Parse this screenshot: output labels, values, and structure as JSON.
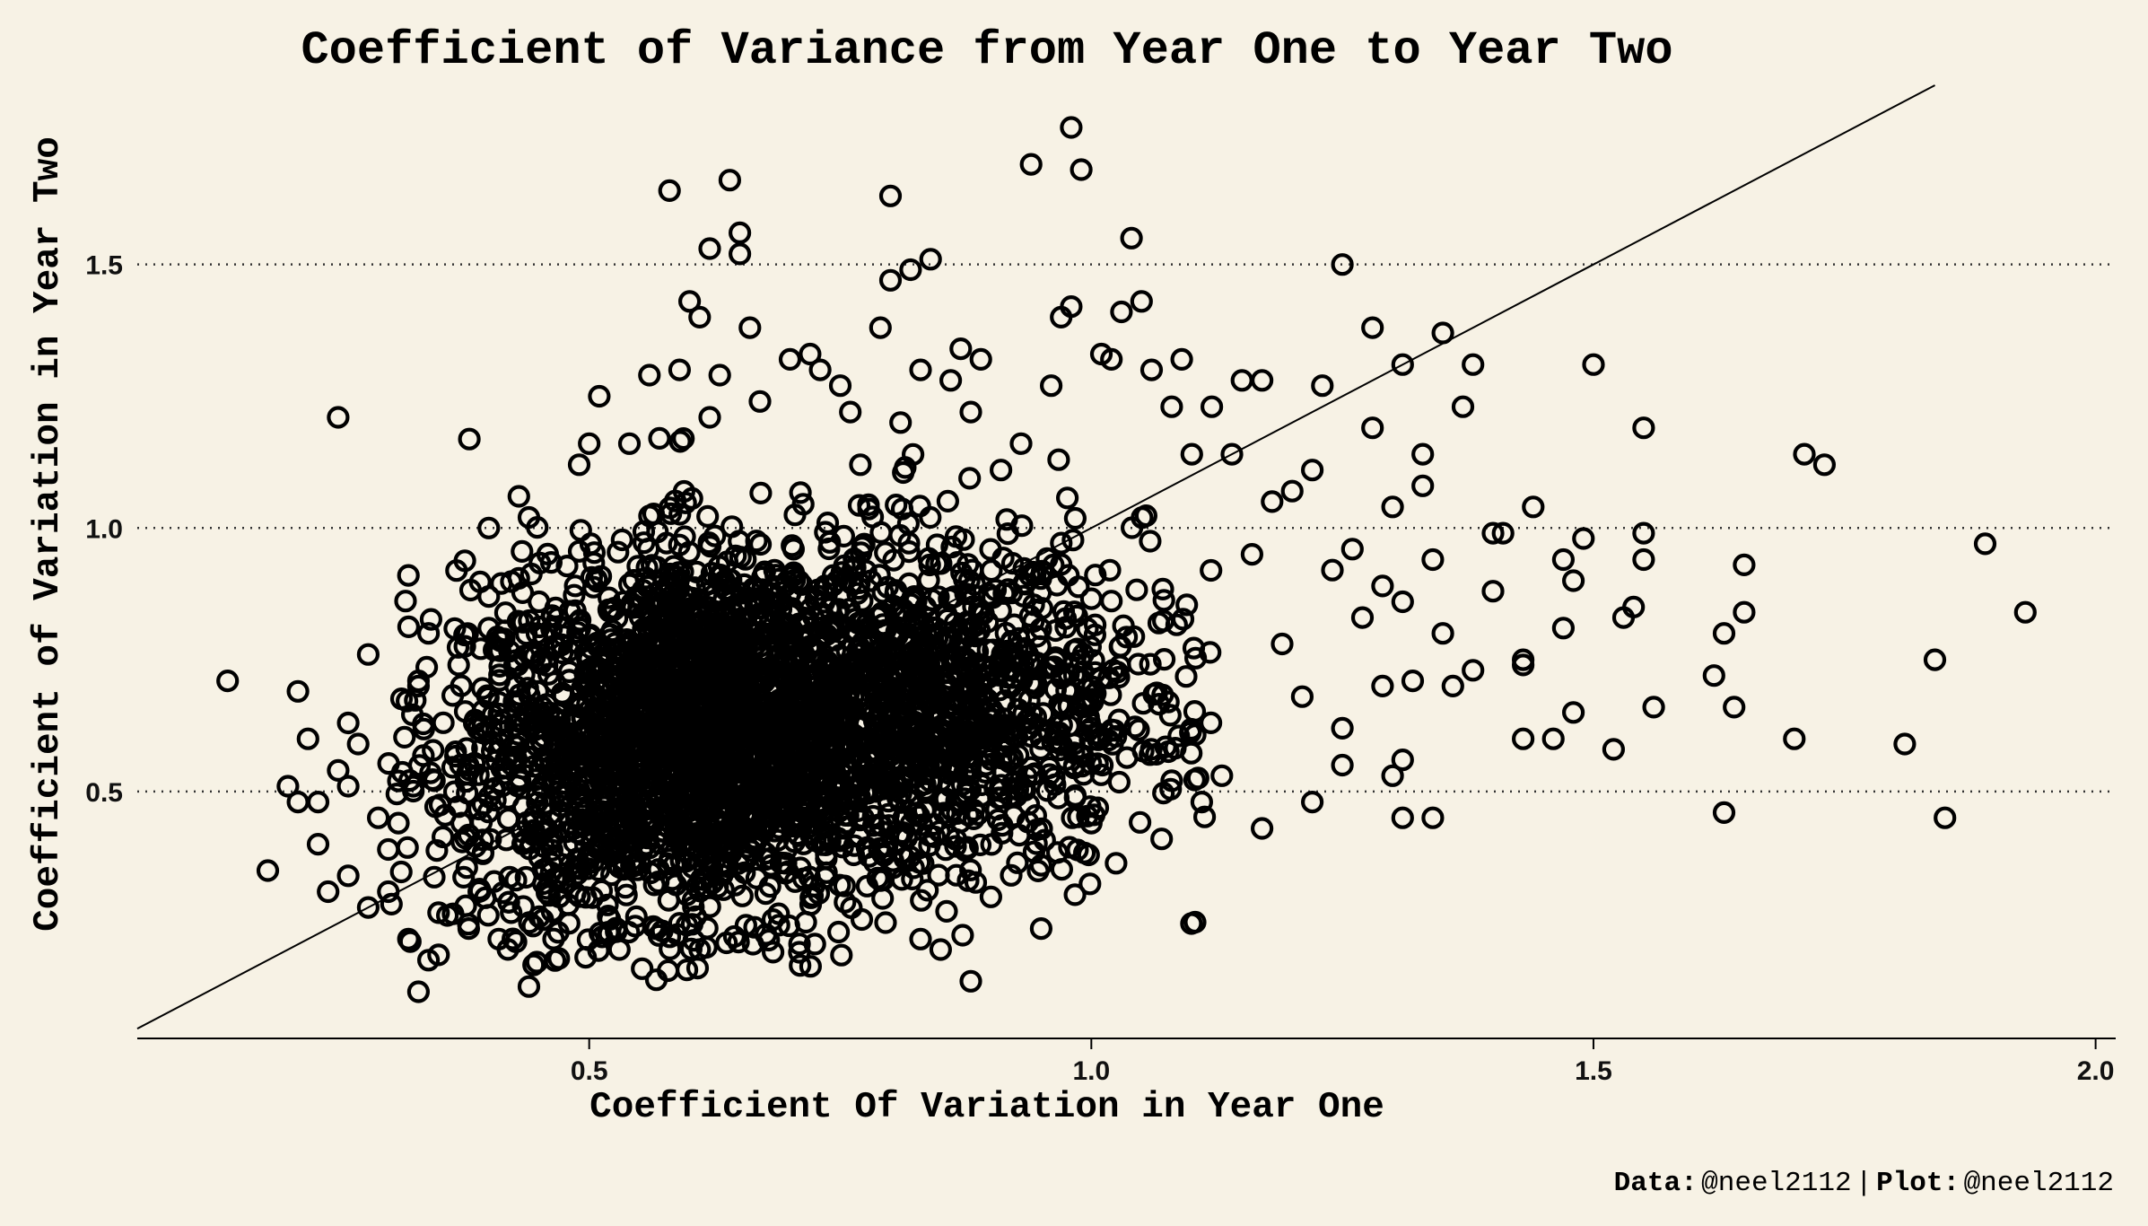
{
  "chart_data": {
    "type": "scatter",
    "title": "Coefficient of Variance from Year One to Year Two",
    "xlabel": "Coefficient Of Variation in Year One",
    "ylabel": "Coefficient of Variation in Year Two",
    "xlim": [
      0.05,
      2.02
    ],
    "ylim": [
      0.04,
      1.84
    ],
    "x_ticks": [
      0.5,
      1.0,
      1.5,
      2.0
    ],
    "x_tick_labels": [
      "0.5",
      "1.0",
      "1.5",
      "2.0"
    ],
    "y_ticks": [
      0.5,
      1.0,
      1.5
    ],
    "y_tick_labels": [
      "0.5",
      "1.0",
      "1.5"
    ],
    "grid": "horizontal dotted",
    "reference_line": "y = x",
    "marker": "open circle",
    "colors": {
      "background": "#f7f2e5",
      "marker": "#000000",
      "text": "#000000"
    },
    "cluster": {
      "count": 3400,
      "center_x": 0.65,
      "center_y": 0.62,
      "spread_x": 0.16,
      "spread_y": 0.17
    },
    "points": [
      [
        0.14,
        0.71
      ],
      [
        0.18,
        0.35
      ],
      [
        0.2,
        0.51
      ],
      [
        0.21,
        0.69
      ],
      [
        0.21,
        0.48
      ],
      [
        0.22,
        0.6
      ],
      [
        0.23,
        0.48
      ],
      [
        0.23,
        0.4
      ],
      [
        0.24,
        0.31
      ],
      [
        0.25,
        0.54
      ],
      [
        0.26,
        0.34
      ],
      [
        0.26,
        0.51
      ],
      [
        0.26,
        0.63
      ],
      [
        0.27,
        0.59
      ],
      [
        0.28,
        0.28
      ],
      [
        0.28,
        0.76
      ],
      [
        0.29,
        0.45
      ],
      [
        0.3,
        0.31
      ],
      [
        0.3,
        0.39
      ],
      [
        0.31,
        0.44
      ],
      [
        0.31,
        0.52
      ],
      [
        0.32,
        0.22
      ],
      [
        0.32,
        0.91
      ],
      [
        0.33,
        0.12
      ],
      [
        0.33,
        0.71
      ],
      [
        0.33,
        0.7
      ],
      [
        0.34,
        0.8
      ],
      [
        0.34,
        0.18
      ],
      [
        0.35,
        0.27
      ],
      [
        0.35,
        0.19
      ],
      [
        0.25,
        1.21
      ],
      [
        0.37,
        0.74
      ],
      [
        0.38,
        0.24
      ],
      [
        0.39,
        0.31
      ],
      [
        0.4,
        0.87
      ],
      [
        0.4,
        0.81
      ],
      [
        0.4,
        1.0
      ],
      [
        0.41,
        0.22
      ],
      [
        0.42,
        0.29
      ],
      [
        0.43,
        1.06
      ],
      [
        0.44,
        0.13
      ],
      [
        0.44,
        1.02
      ],
      [
        0.45,
        0.86
      ],
      [
        0.47,
        0.3
      ],
      [
        0.48,
        0.25
      ],
      [
        0.49,
        1.12
      ],
      [
        0.5,
        1.16
      ],
      [
        0.51,
        1.25
      ],
      [
        0.52,
        0.23
      ],
      [
        0.53,
        0.2
      ],
      [
        0.54,
        1.16
      ],
      [
        0.56,
        1.29
      ],
      [
        0.57,
        1.17
      ],
      [
        0.58,
        1.64
      ],
      [
        0.59,
        1.3
      ],
      [
        0.59,
        0.25
      ],
      [
        0.6,
        1.43
      ],
      [
        0.61,
        0.2
      ],
      [
        0.61,
        1.4
      ],
      [
        0.62,
        1.53
      ],
      [
        0.62,
        1.21
      ],
      [
        0.63,
        1.29
      ],
      [
        0.64,
        1.66
      ],
      [
        0.65,
        1.56
      ],
      [
        0.65,
        1.52
      ],
      [
        0.66,
        1.38
      ],
      [
        0.67,
        1.24
      ],
      [
        0.68,
        0.32
      ],
      [
        0.7,
        1.32
      ],
      [
        0.71,
        0.17
      ],
      [
        0.72,
        1.33
      ],
      [
        0.73,
        1.3
      ],
      [
        0.75,
        1.27
      ],
      [
        0.76,
        1.22
      ],
      [
        0.77,
        1.12
      ],
      [
        0.79,
        1.38
      ],
      [
        0.8,
        1.47
      ],
      [
        0.8,
        1.63
      ],
      [
        0.81,
        1.2
      ],
      [
        0.82,
        1.49
      ],
      [
        0.83,
        1.3
      ],
      [
        0.84,
        1.51
      ],
      [
        0.83,
        0.22
      ],
      [
        0.85,
        0.2
      ],
      [
        0.86,
        1.28
      ],
      [
        0.87,
        1.34
      ],
      [
        0.88,
        1.22
      ],
      [
        0.88,
        0.14
      ],
      [
        0.89,
        1.32
      ],
      [
        0.9,
        0.3
      ],
      [
        0.91,
        1.11
      ],
      [
        0.93,
        1.16
      ],
      [
        0.94,
        1.69
      ],
      [
        0.95,
        0.24
      ],
      [
        0.95,
        0.36
      ],
      [
        0.96,
        1.27
      ],
      [
        0.97,
        1.4
      ],
      [
        0.98,
        1.76
      ],
      [
        0.98,
        1.42
      ],
      [
        0.99,
        1.68
      ],
      [
        1.0,
        0.44
      ],
      [
        1.01,
        1.33
      ],
      [
        1.02,
        1.32
      ],
      [
        1.03,
        1.41
      ],
      [
        1.04,
        1.55
      ],
      [
        1.05,
        1.43
      ],
      [
        1.06,
        1.3
      ],
      [
        1.07,
        0.41
      ],
      [
        1.08,
        1.23
      ],
      [
        1.09,
        1.32
      ],
      [
        1.1,
        1.14
      ],
      [
        1.11,
        0.48
      ],
      [
        1.12,
        1.23
      ],
      [
        1.13,
        0.53
      ],
      [
        1.14,
        1.14
      ],
      [
        1.15,
        1.28
      ],
      [
        1.16,
        0.95
      ],
      [
        1.17,
        1.28
      ],
      [
        1.17,
        0.43
      ],
      [
        1.18,
        1.05
      ],
      [
        1.19,
        0.78
      ],
      [
        1.2,
        1.07
      ],
      [
        1.21,
        0.68
      ],
      [
        1.22,
        0.48
      ],
      [
        1.22,
        1.11
      ],
      [
        1.23,
        1.27
      ],
      [
        1.24,
        0.92
      ],
      [
        1.25,
        1.5
      ],
      [
        1.25,
        0.62
      ],
      [
        1.25,
        0.55
      ],
      [
        1.26,
        0.96
      ],
      [
        1.27,
        0.83
      ],
      [
        1.28,
        1.38
      ],
      [
        1.28,
        1.19
      ],
      [
        1.29,
        0.7
      ],
      [
        1.29,
        0.89
      ],
      [
        1.3,
        1.04
      ],
      [
        1.3,
        0.53
      ],
      [
        1.31,
        0.56
      ],
      [
        1.31,
        0.86
      ],
      [
        1.31,
        0.45
      ],
      [
        1.31,
        1.31
      ],
      [
        1.32,
        0.71
      ],
      [
        1.33,
        1.08
      ],
      [
        1.33,
        1.14
      ],
      [
        1.34,
        0.94
      ],
      [
        1.34,
        0.45
      ],
      [
        1.35,
        1.37
      ],
      [
        1.35,
        0.8
      ],
      [
        1.36,
        0.7
      ],
      [
        1.37,
        1.23
      ],
      [
        1.38,
        0.73
      ],
      [
        1.38,
        1.31
      ],
      [
        1.4,
        0.99
      ],
      [
        1.4,
        0.88
      ],
      [
        1.41,
        0.99
      ],
      [
        1.43,
        0.75
      ],
      [
        1.43,
        0.74
      ],
      [
        1.43,
        0.6
      ],
      [
        1.44,
        1.04
      ],
      [
        1.46,
        0.6
      ],
      [
        1.47,
        0.81
      ],
      [
        1.47,
        0.94
      ],
      [
        1.48,
        0.65
      ],
      [
        1.48,
        0.9
      ],
      [
        1.49,
        0.98
      ],
      [
        1.5,
        1.31
      ],
      [
        1.52,
        0.58
      ],
      [
        1.53,
        0.83
      ],
      [
        1.54,
        0.85
      ],
      [
        1.55,
        0.94
      ],
      [
        1.55,
        1.19
      ],
      [
        1.55,
        0.99
      ],
      [
        1.56,
        0.66
      ],
      [
        1.62,
        0.72
      ],
      [
        1.63,
        0.46
      ],
      [
        1.63,
        0.8
      ],
      [
        1.64,
        0.66
      ],
      [
        1.65,
        0.93
      ],
      [
        1.65,
        0.84
      ],
      [
        1.7,
        0.6
      ],
      [
        1.71,
        1.14
      ],
      [
        1.73,
        1.12
      ],
      [
        1.81,
        0.59
      ],
      [
        1.84,
        0.75
      ],
      [
        1.85,
        0.45
      ],
      [
        1.89,
        0.97
      ],
      [
        1.93,
        0.84
      ]
    ]
  },
  "caption": {
    "data_label": "Data:",
    "data_value": "@neel2112",
    "separator": "|",
    "plot_label": "Plot:",
    "plot_value": "@neel2112"
  }
}
